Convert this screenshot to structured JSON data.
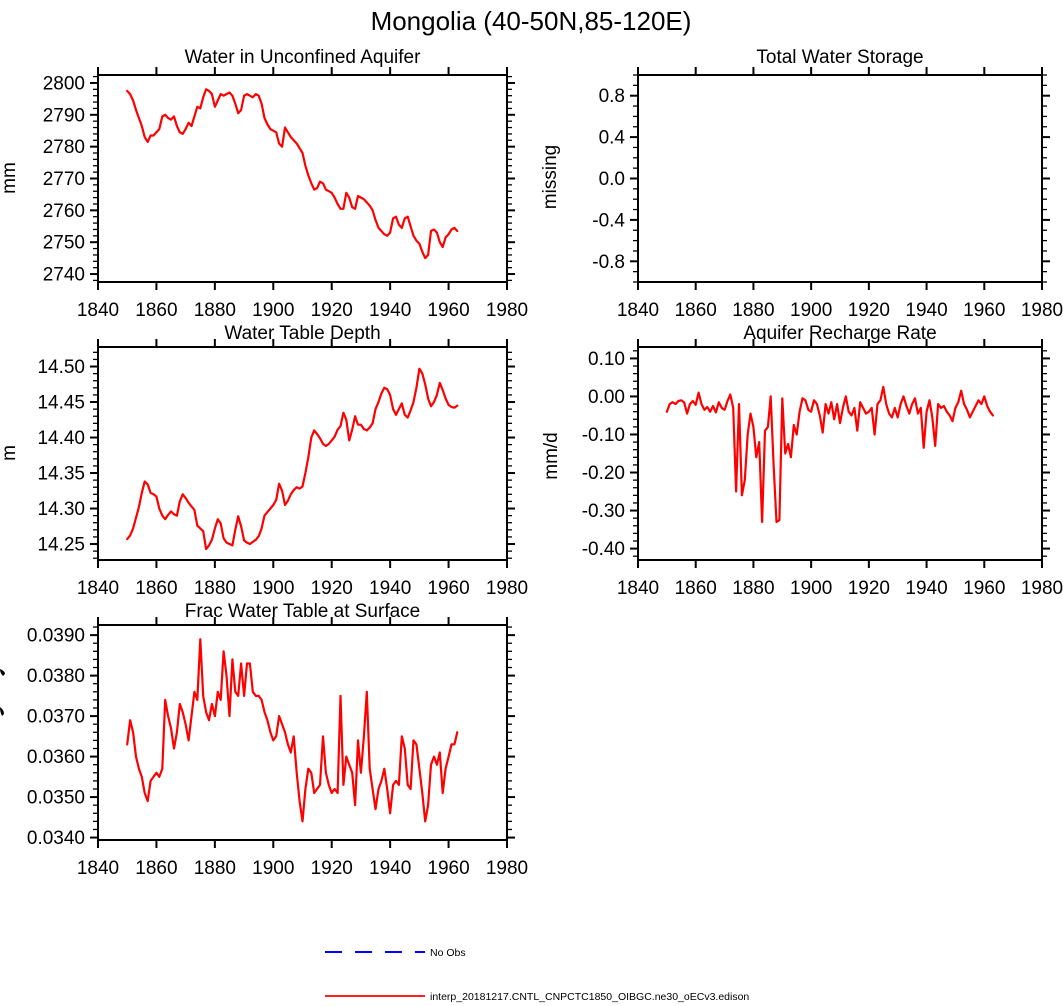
{
  "title": "Mongolia (40-50N,85-120E)",
  "colors": {
    "series": "#ff0000",
    "no_obs": "#0000ff",
    "axis": "#000000"
  },
  "legend": {
    "no_obs_label": "No Obs",
    "model_label": "interp_20181217.CNTL_CNPCTC1850_OIBGC.ne30_oECv3.edison"
  },
  "chart_data": [
    {
      "id": "water-unconfined-aquifer",
      "type": "line",
      "title": "Water in Unconfined Aquifer",
      "ylabel": "mm",
      "xlabel": "",
      "xlim": [
        1840,
        1980
      ],
      "ylim": [
        2737.5,
        2802.5
      ],
      "grid": false,
      "x_ticks": {
        "values": [
          1840,
          1860,
          1880,
          1900,
          1920,
          1940,
          1960,
          1980
        ],
        "labels": [
          "1840",
          "1860",
          "1880",
          "1900",
          "1920",
          "1940",
          "1960",
          "1980"
        ]
      },
      "y_ticks": {
        "values": [
          2800,
          2790,
          2780,
          2770,
          2760,
          2750,
          2740
        ],
        "labels": [
          "2800",
          "2790",
          "2780",
          "2770",
          "2760",
          "2750",
          "2740"
        ]
      },
      "y_minor_step": 2,
      "x_start": 1850,
      "x_step": 1,
      "values": [
        2797.5,
        2796.5,
        2794.5,
        2791.5,
        2789,
        2786.5,
        2783,
        2781.5,
        2783.5,
        2783.5,
        2784.5,
        2785.5,
        2789.5,
        2790,
        2789,
        2788.5,
        2789.5,
        2786.5,
        2784.5,
        2784,
        2785.5,
        2787.5,
        2786.5,
        2789.5,
        2792.5,
        2792,
        2795.5,
        2798,
        2797.5,
        2796.5,
        2792.5,
        2794.5,
        2796.5,
        2796,
        2796.5,
        2797,
        2796,
        2793.5,
        2790.5,
        2791.5,
        2796,
        2796.5,
        2796,
        2795.5,
        2796.5,
        2796,
        2793.5,
        2789,
        2787,
        2785.5,
        2785,
        2784.5,
        2781,
        2780,
        2786,
        2784.5,
        2783,
        2782,
        2781,
        2779.5,
        2778,
        2774,
        2771,
        2768.5,
        2766.5,
        2767,
        2769,
        2768.5,
        2766.5,
        2766,
        2765.5,
        2764,
        2762,
        2760.5,
        2760.5,
        2765.5,
        2764,
        2761,
        2760.5,
        2764.5,
        2764,
        2763.5,
        2762.5,
        2761.5,
        2760,
        2757,
        2754.5,
        2753.5,
        2752.5,
        2752,
        2753,
        2757.5,
        2758,
        2755.5,
        2754.5,
        2757.5,
        2758,
        2755,
        2752,
        2750.5,
        2749.5,
        2747,
        2745,
        2746,
        2753.5,
        2754,
        2753,
        2750,
        2748.5,
        2751.5,
        2752.5,
        2754,
        2754.5,
        2753.5
      ]
    },
    {
      "id": "total-water-storage",
      "type": "line",
      "title": "Total Water Storage",
      "ylabel": "missing",
      "xlabel": "",
      "xlim": [
        1840,
        1980
      ],
      "ylim": [
        -1.0,
        1.0
      ],
      "grid": false,
      "x_ticks": {
        "values": [
          1840,
          1860,
          1880,
          1900,
          1920,
          1940,
          1960,
          1980
        ],
        "labels": [
          "1840",
          "1860",
          "1880",
          "1900",
          "1920",
          "1940",
          "1960",
          "1980"
        ]
      },
      "y_ticks": {
        "values": [
          0.8,
          0.4,
          0.0,
          -0.4,
          -0.8
        ],
        "labels": [
          "0.8",
          "0.4",
          "0.0",
          "-0.4",
          "-0.8"
        ]
      },
      "y_minor_step": 0.1,
      "x_start": 1850,
      "x_step": 1,
      "values": []
    },
    {
      "id": "water-table-depth",
      "type": "line",
      "title": "Water Table Depth",
      "ylabel": "m",
      "xlabel": "",
      "xlim": [
        1840,
        1980
      ],
      "ylim": [
        14.2275,
        14.5275
      ],
      "grid": false,
      "x_ticks": {
        "values": [
          1840,
          1860,
          1880,
          1900,
          1920,
          1940,
          1960,
          1980
        ],
        "labels": [
          "1840",
          "1860",
          "1880",
          "1900",
          "1920",
          "1940",
          "1960",
          "1980"
        ]
      },
      "y_ticks": {
        "values": [
          14.5,
          14.45,
          14.4,
          14.35,
          14.3,
          14.25
        ],
        "labels": [
          "14.50",
          "14.45",
          "14.40",
          "14.35",
          "14.30",
          "14.25"
        ]
      },
      "y_minor_step": 0.01,
      "x_start": 1850,
      "x_step": 1,
      "values": [
        14.257,
        14.262,
        14.272,
        14.287,
        14.302,
        14.322,
        14.338,
        14.334,
        14.322,
        14.32,
        14.317,
        14.3,
        14.29,
        14.285,
        14.291,
        14.296,
        14.292,
        14.29,
        14.31,
        14.32,
        14.315,
        14.308,
        14.303,
        14.298,
        14.276,
        14.272,
        14.268,
        14.243,
        14.248,
        14.256,
        14.272,
        14.285,
        14.279,
        14.258,
        14.252,
        14.25,
        14.248,
        14.27,
        14.289,
        14.275,
        14.255,
        14.252,
        14.25,
        14.253,
        14.256,
        14.261,
        14.272,
        14.29,
        14.295,
        14.3,
        14.305,
        14.312,
        14.335,
        14.325,
        14.305,
        14.311,
        14.32,
        14.326,
        14.33,
        14.328,
        14.331,
        14.35,
        14.372,
        14.4,
        14.41,
        14.405,
        14.399,
        14.391,
        14.388,
        14.391,
        14.396,
        14.401,
        14.411,
        14.416,
        14.435,
        14.425,
        14.396,
        14.411,
        14.43,
        14.418,
        14.418,
        14.412,
        14.41,
        14.414,
        14.42,
        14.44,
        14.45,
        14.462,
        14.47,
        14.468,
        14.46,
        14.44,
        14.432,
        14.44,
        14.448,
        14.432,
        14.428,
        14.438,
        14.45,
        14.47,
        14.497,
        14.49,
        14.475,
        14.455,
        14.444,
        14.45,
        14.46,
        14.477,
        14.467,
        14.455,
        14.446,
        14.443,
        14.442,
        14.445
      ]
    },
    {
      "id": "aquifer-recharge-rate",
      "type": "line",
      "title": "Aquifer Recharge Rate",
      "ylabel": "mm/d",
      "xlabel": "",
      "xlim": [
        1840,
        1980
      ],
      "ylim": [
        -0.43,
        0.13
      ],
      "grid": false,
      "x_ticks": {
        "values": [
          1840,
          1860,
          1880,
          1900,
          1920,
          1940,
          1960,
          1980
        ],
        "labels": [
          "1840",
          "1860",
          "1880",
          "1900",
          "1920",
          "1940",
          "1960",
          "1980"
        ]
      },
      "y_ticks": {
        "values": [
          0.1,
          0.0,
          -0.1,
          -0.2,
          -0.3,
          -0.4
        ],
        "labels": [
          "0.10",
          "0.00",
          "-0.10",
          "-0.20",
          "-0.30",
          "-0.40"
        ]
      },
      "y_minor_step": 0.02,
      "x_start": 1850,
      "x_step": 1,
      "values": [
        -0.04,
        -0.02,
        -0.015,
        -0.02,
        -0.012,
        -0.01,
        -0.016,
        -0.045,
        -0.02,
        -0.012,
        -0.022,
        0.01,
        -0.02,
        -0.035,
        -0.028,
        -0.04,
        -0.025,
        -0.042,
        -0.015,
        -0.03,
        -0.035,
        -0.012,
        0.005,
        -0.03,
        -0.25,
        -0.02,
        -0.26,
        -0.22,
        -0.1,
        -0.045,
        -0.08,
        -0.16,
        -0.12,
        -0.33,
        -0.09,
        -0.08,
        0.0,
        -0.18,
        -0.33,
        -0.325,
        -0.005,
        -0.15,
        -0.125,
        -0.16,
        -0.075,
        -0.1,
        -0.04,
        -0.005,
        -0.01,
        -0.035,
        -0.04,
        -0.01,
        -0.02,
        -0.05,
        -0.095,
        -0.02,
        -0.045,
        -0.015,
        -0.06,
        -0.02,
        -0.07,
        -0.03,
        0.0,
        -0.04,
        -0.05,
        -0.03,
        -0.09,
        -0.015,
        -0.03,
        -0.045,
        -0.04,
        -0.03,
        -0.1,
        -0.02,
        -0.01,
        0.025,
        -0.02,
        -0.045,
        -0.055,
        -0.03,
        -0.055,
        -0.02,
        0.0,
        -0.025,
        -0.045,
        -0.02,
        -0.005,
        -0.045,
        -0.03,
        -0.135,
        -0.04,
        -0.01,
        -0.055,
        -0.13,
        -0.02,
        -0.03,
        -0.025,
        -0.04,
        -0.05,
        -0.065,
        -0.03,
        -0.015,
        0.015,
        -0.02,
        -0.035,
        -0.055,
        -0.04,
        -0.025,
        -0.01,
        -0.02,
        0.0,
        -0.025,
        -0.04,
        -0.05
      ]
    },
    {
      "id": "frac-water-table-at-surface",
      "type": "line",
      "title": "Frac Water Table at Surface",
      "ylabel": "",
      "ylabel_clipped": true,
      "xlabel": "",
      "xlim": [
        1840,
        1980
      ],
      "ylim": [
        0.03394,
        0.03925
      ],
      "grid": false,
      "x_ticks": {
        "values": [
          1840,
          1860,
          1880,
          1900,
          1920,
          1940,
          1960,
          1980
        ],
        "labels": [
          "1840",
          "1860",
          "1880",
          "1900",
          "1920",
          "1940",
          "1960",
          "1980"
        ]
      },
      "y_ticks": {
        "values": [
          0.039,
          0.038,
          0.037,
          0.036,
          0.035,
          0.034
        ],
        "labels": [
          "0.0390",
          "0.0380",
          "0.0370",
          "0.0360",
          "0.0350",
          "0.0340"
        ]
      },
      "y_minor_step": 0.0002,
      "x_start": 1850,
      "x_step": 1,
      "values": [
        0.0363,
        0.0369,
        0.0366,
        0.036,
        0.0357,
        0.0355,
        0.0351,
        0.0349,
        0.0354,
        0.0355,
        0.0356,
        0.0355,
        0.0357,
        0.0374,
        0.037,
        0.0367,
        0.0362,
        0.0366,
        0.0373,
        0.0371,
        0.0368,
        0.0364,
        0.037,
        0.0376,
        0.0374,
        0.0389,
        0.0375,
        0.0371,
        0.0369,
        0.0373,
        0.037,
        0.0376,
        0.0374,
        0.0386,
        0.038,
        0.037,
        0.0384,
        0.0376,
        0.0375,
        0.0383,
        0.0375,
        0.0383,
        0.0383,
        0.0376,
        0.0375,
        0.0375,
        0.0374,
        0.0371,
        0.0369,
        0.0366,
        0.0364,
        0.0365,
        0.037,
        0.0368,
        0.0366,
        0.0363,
        0.0361,
        0.0365,
        0.0356,
        0.0349,
        0.0344,
        0.0352,
        0.0357,
        0.0356,
        0.0351,
        0.0352,
        0.0353,
        0.0365,
        0.0356,
        0.0353,
        0.0351,
        0.0352,
        0.0351,
        0.0375,
        0.0353,
        0.036,
        0.0358,
        0.0356,
        0.0348,
        0.0364,
        0.0356,
        0.0365,
        0.0376,
        0.0357,
        0.0352,
        0.0347,
        0.0352,
        0.0354,
        0.0357,
        0.0352,
        0.0346,
        0.0353,
        0.0354,
        0.0353,
        0.0365,
        0.0362,
        0.0353,
        0.0352,
        0.0364,
        0.0363,
        0.0357,
        0.0351,
        0.0344,
        0.0348,
        0.0358,
        0.036,
        0.0358,
        0.0361,
        0.0351,
        0.0357,
        0.036,
        0.0363,
        0.0363,
        0.0366
      ]
    }
  ]
}
